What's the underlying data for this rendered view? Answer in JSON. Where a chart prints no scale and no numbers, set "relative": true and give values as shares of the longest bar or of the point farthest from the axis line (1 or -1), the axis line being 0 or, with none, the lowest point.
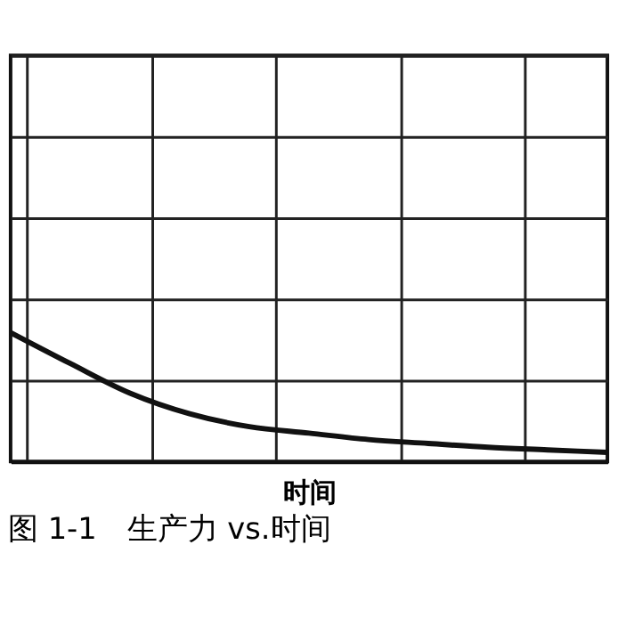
{
  "chart_data": {
    "type": "line",
    "relative": true,
    "xlabel": "时间",
    "annotations": [
      "图 1-1　生产力 vs.时间"
    ],
    "categories": [
      null,
      null,
      null,
      null,
      null,
      null,
      null,
      null,
      null,
      null,
      null
    ],
    "series": [
      {
        "color": "#111111",
        "values": [
          1,
          0.76,
          0.53,
          0.37,
          0.27,
          0.22,
          0.17,
          0.14,
          0.11,
          0.09,
          0.07
        ]
      }
    ],
    "grid": true,
    "legend": false,
    "marker": "none",
    "line_style": "solid"
  }
}
